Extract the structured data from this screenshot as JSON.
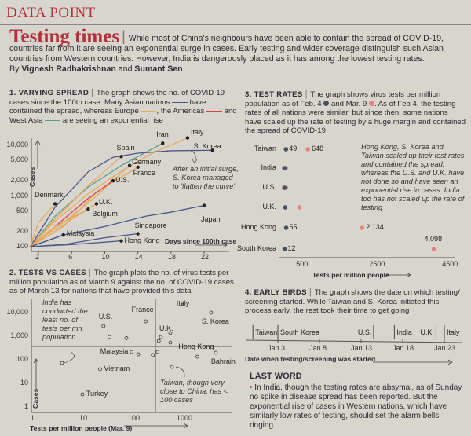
{
  "header": {
    "section": "DATA POINT"
  },
  "intro": {
    "title": "Testing times",
    "text": "While most of China's neighbours have been able to contain the spread of COVID-19, countries far from it are seeing an exponential surge in cases. Early testing and wider coverage distinguish such Asian countries from Western countries. However, India is dangerously placed as it has among the lowest testing rates.",
    "by": "By",
    "author1": "Vignesh Radhakrishnan",
    "and": "and",
    "author2": "Sumant Sen"
  },
  "colors": {
    "accent": "#b3303b",
    "asia": "#4c5788",
    "europe": "#e9a95c",
    "americas": "#d8434b",
    "west_asia": "#5c9e8a",
    "feb4": "#4a4f66",
    "mar9": "#e5847f"
  },
  "chart_data": [
    {
      "type": "line",
      "heading": "1. VARYING SPREAD",
      "description_1": "The graph shows the no. of COVID-19 cases since the 100th case. Many Asian nations",
      "description_2": "have contained the spread, whereas Europe",
      "description_3": ", the Americas",
      "description_4": "and West Asia",
      "description_5": "are seeing an exponential rise",
      "ylabel": "Cases",
      "xlabel": "Days since 100th case",
      "yscale": "log",
      "yticks": [
        "10,000",
        "5,000",
        "2,000",
        "1,000",
        "500",
        "200",
        "100"
      ],
      "ytick_values": [
        10000,
        5000,
        2000,
        1000,
        500,
        200,
        100
      ],
      "xticks": [
        "2",
        "6",
        "10",
        "14",
        "18",
        "22"
      ],
      "xtick_values": [
        2,
        6,
        10,
        14,
        18,
        22
      ],
      "annotation": "After an initial surge, S. Korea managed to 'flatten the curve'",
      "series": [
        {
          "name": "Italy",
          "group": "europe",
          "days": [
            1,
            4,
            8,
            12,
            16,
            18,
            20
          ],
          "cases": [
            100,
            320,
            1100,
            3100,
            7400,
            10100,
            14000
          ]
        },
        {
          "name": "Iran",
          "group": "west_asia",
          "days": [
            1,
            4,
            8,
            12,
            17
          ],
          "cases": [
            100,
            400,
            1500,
            4000,
            11000
          ]
        },
        {
          "name": "S. Korea",
          "group": "asia",
          "days": [
            1,
            4,
            8,
            11,
            14,
            18,
            23
          ],
          "cases": [
            100,
            600,
            3000,
            5800,
            7000,
            7800,
            8000
          ]
        },
        {
          "name": "Spain",
          "group": "europe",
          "days": [
            1,
            4,
            8,
            12
          ],
          "cases": [
            100,
            350,
            1600,
            6000
          ]
        },
        {
          "name": "Germany",
          "group": "europe",
          "days": [
            1,
            5,
            9,
            13
          ],
          "cases": [
            100,
            300,
            1000,
            4000
          ]
        },
        {
          "name": "France",
          "group": "europe",
          "days": [
            1,
            5,
            9,
            14
          ],
          "cases": [
            100,
            250,
            1200,
            3700
          ]
        },
        {
          "name": "U.S.",
          "group": "americas",
          "days": [
            1,
            4,
            8,
            11
          ],
          "cases": [
            100,
            250,
            900,
            2000
          ]
        },
        {
          "name": "Denmark",
          "group": "europe",
          "days": [
            1,
            2,
            4
          ],
          "cases": [
            100,
            300,
            700
          ]
        },
        {
          "name": "U.K.",
          "group": "europe",
          "days": [
            1,
            4,
            7,
            9
          ],
          "cases": [
            100,
            250,
            450,
            700
          ]
        },
        {
          "name": "Belgium",
          "group": "europe",
          "days": [
            1,
            4,
            6,
            8
          ],
          "cases": [
            100,
            200,
            350,
            550
          ]
        },
        {
          "name": "Japan",
          "group": "asia",
          "days": [
            1,
            5,
            10,
            15,
            18,
            22
          ],
          "cases": [
            100,
            170,
            250,
            400,
            480,
            650
          ]
        },
        {
          "name": "Malaysia",
          "group": "asia",
          "days": [
            1,
            3,
            5
          ],
          "cases": [
            100,
            130,
            170
          ]
        },
        {
          "name": "Singapore",
          "group": "asia",
          "days": [
            1,
            5,
            10,
            14
          ],
          "cases": [
            100,
            110,
            150,
            180
          ]
        },
        {
          "name": "Hong Kong",
          "group": "asia",
          "days": [
            1,
            6,
            12
          ],
          "cases": [
            100,
            110,
            130
          ]
        }
      ]
    },
    {
      "type": "scatter",
      "heading": "2. TESTS VS CASES",
      "description": "The graph plots the no. of virus tests per million population as of March 9 against the no. of COVID-19 cases as of March 13 for nations that have provided this data",
      "xlabel": "Tests per million people (Mar. 9)",
      "ylabel": "Cases",
      "xscale": "log",
      "yscale": "log",
      "xticks": [
        "1",
        "10",
        "100",
        "1000"
      ],
      "yticks": [
        "10,000",
        "1,000",
        "100",
        "10",
        "1"
      ],
      "annotation_india": "India has conducted the least no. of tests per mn population",
      "annotation_taiwan": "Taiwan, though very close to China, has < 100 cases",
      "points": [
        {
          "name": "India",
          "tests": 3.8,
          "cases": 74
        },
        {
          "name": "U.S.",
          "tests": 27,
          "cases": 2700
        },
        {
          "name": "",
          "tests": 36,
          "cases": 930
        },
        {
          "name": "",
          "tests": 80,
          "cases": 830
        },
        {
          "name": "France",
          "tests": 200,
          "cases": 4300
        },
        {
          "name": "Malaysia",
          "tests": 103,
          "cases": 215
        },
        {
          "name": "",
          "tests": 140,
          "cases": 170
        },
        {
          "name": "",
          "tests": 280,
          "cases": 160
        },
        {
          "name": "",
          "tests": 350,
          "cases": 215
        },
        {
          "name": "Vietnam",
          "tests": 23,
          "cases": 40
        },
        {
          "name": "Turkey",
          "tests": 10,
          "cases": 3.4
        },
        {
          "name": "Italy",
          "tests": 1150,
          "cases": 25000
        },
        {
          "name": "S. Korea",
          "tests": 4400,
          "cases": 10000
        },
        {
          "name": "U.K.",
          "tests": 410,
          "cases": 930
        },
        {
          "name": "",
          "tests": 370,
          "cases": 630
        },
        {
          "name": "",
          "tests": 640,
          "cases": 1370
        },
        {
          "name": "",
          "tests": 640,
          "cases": 540
        },
        {
          "name": "Hong Kong",
          "tests": 2300,
          "cases": 135
        },
        {
          "name": "Bahrain",
          "tests": 5500,
          "cases": 200
        },
        {
          "name": "Taiwan",
          "tests": 690,
          "cases": 50
        }
      ]
    },
    {
      "type": "dot",
      "heading": "3. TEST RATES",
      "description_1": "The graph shows virus tests per million population as of Feb. 4",
      "description_2": "and Mar. 9",
      "description_3": ". As of Feb 4. the testing rates of all nations were similar, but since then, some nations have scaled up the rate of testing by a huge margin and contained the spread of COVID-19",
      "xlabel": "Tests per million people",
      "xticks": [
        "500",
        "2500",
        "4500"
      ],
      "xtick_values": [
        500,
        2500,
        4500
      ],
      "annotation": "Hong Kong, S. Korea and Taiwan scaled up their test rates and contained the spread, whereas the U.S. and U.K. have not done so and have seen an exponential rise in cases. India too has not scaled up the rate of testing",
      "series_names": [
        "Feb. 4",
        "Mar. 9"
      ],
      "rows": [
        {
          "country": "Taiwan",
          "feb4": 49,
          "mar9": 648,
          "feb4_label": "49",
          "mar9_label": "648"
        },
        {
          "country": "India",
          "feb4": 5,
          "mar9": 6
        },
        {
          "country": "U.S.",
          "feb4": 5,
          "mar9": 8
        },
        {
          "country": "U.K.",
          "feb4": 30,
          "mar9": 420
        },
        {
          "country": "Hong Kong",
          "feb4": 55,
          "mar9": 2134,
          "feb4_label": "55",
          "mar9_label": "2,134"
        },
        {
          "country": "South Korea",
          "feb4": 12,
          "mar9": 4098,
          "feb4_label": "12",
          "mar9_label": "4,098"
        }
      ]
    },
    {
      "type": "timeline",
      "heading": "4. EARLY BIRDS",
      "description": "The graph shows the date on which testing/ screening started. While Taiwan and S. Korea initiated this process early, the rest took their time to get going",
      "xlabel": "Date when testing/screening was started",
      "xticks": [
        "Jan.3",
        "Jan.8",
        "Jan.13",
        "Jan.18",
        "Jan.23"
      ],
      "xtick_days": [
        3,
        8,
        13,
        18,
        23
      ],
      "events": [
        {
          "country": "Taiwan",
          "jan_day": 0
        },
        {
          "country": "South Korea",
          "jan_day": 3
        },
        {
          "country": "U.S.",
          "jan_day": 14.5
        },
        {
          "country": "India",
          "jan_day": 17
        },
        {
          "country": "U.K.",
          "jan_day": 22
        },
        {
          "country": "Italy",
          "jan_day": 23
        }
      ]
    }
  ],
  "last_word": {
    "title": "LAST WORD",
    "bullet": "•",
    "text": "In India, though the testing rates are absymal, as of Sunday no spike in disease spread has been reported. But the exponential rise of cases in Western nations, which have similarly low rates of testing, should set the alarm bells ringing"
  }
}
